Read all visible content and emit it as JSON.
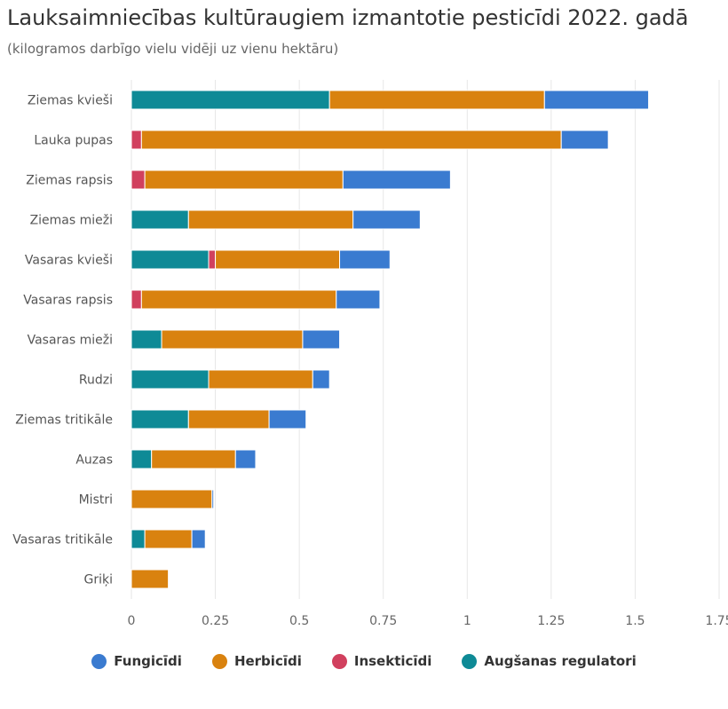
{
  "chart_data": {
    "type": "bar",
    "orientation": "horizontal",
    "stacked": true,
    "title": "Lauksaimniecības kultūraugiem izmantotie pesticīdi 2022. gadā",
    "subtitle": "(kilogramos darbīgo vielu vidēji uz vienu hektāru)",
    "categories": [
      "Ziemas kvieši",
      "Lauka pupas",
      "Ziemas rapsis",
      "Ziemas mieži",
      "Vasaras kvieši",
      "Vasaras rapsis",
      "Vasaras mieži",
      "Rudzi",
      "Ziemas tritikāle",
      "Auzas",
      "Mistri",
      "Vasaras tritikāle",
      "Griķi"
    ],
    "xlim": [
      0,
      1.75
    ],
    "xticks": [
      0,
      0.25,
      0.5,
      0.75,
      1,
      1.25,
      1.5,
      1.75
    ],
    "xtick_labels": [
      "0",
      "0.25",
      "0.5",
      "0.75",
      "1",
      "1.25",
      "1.5",
      "1.75"
    ],
    "grid": true,
    "legend_position": "bottom",
    "series": [
      {
        "name": "Augšanas regulatori",
        "color": "#0e8a96",
        "values": [
          0.59,
          0,
          0,
          0.17,
          0.23,
          0,
          0.09,
          0.23,
          0.17,
          0.06,
          0,
          0.04,
          0
        ]
      },
      {
        "name": "Insekticīdi",
        "color": "#d1405e",
        "values": [
          0,
          0.03,
          0.04,
          0,
          0.02,
          0.03,
          0,
          0,
          0,
          0,
          0,
          0,
          0
        ]
      },
      {
        "name": "Herbicīdi",
        "color": "#d9820f",
        "values": [
          0.64,
          1.25,
          0.59,
          0.49,
          0.37,
          0.58,
          0.42,
          0.31,
          0.24,
          0.25,
          0.24,
          0.14,
          0.11
        ]
      },
      {
        "name": "Fungicīdi",
        "color": "#3a7bd0",
        "values": [
          0.31,
          0.14,
          0.32,
          0.2,
          0.15,
          0.13,
          0.11,
          0.05,
          0.11,
          0.06,
          0.005,
          0.04,
          0
        ]
      }
    ],
    "legend_order": [
      "Fungicīdi",
      "Herbicīdi",
      "Insekticīdi",
      "Augšanas regulatori"
    ]
  }
}
